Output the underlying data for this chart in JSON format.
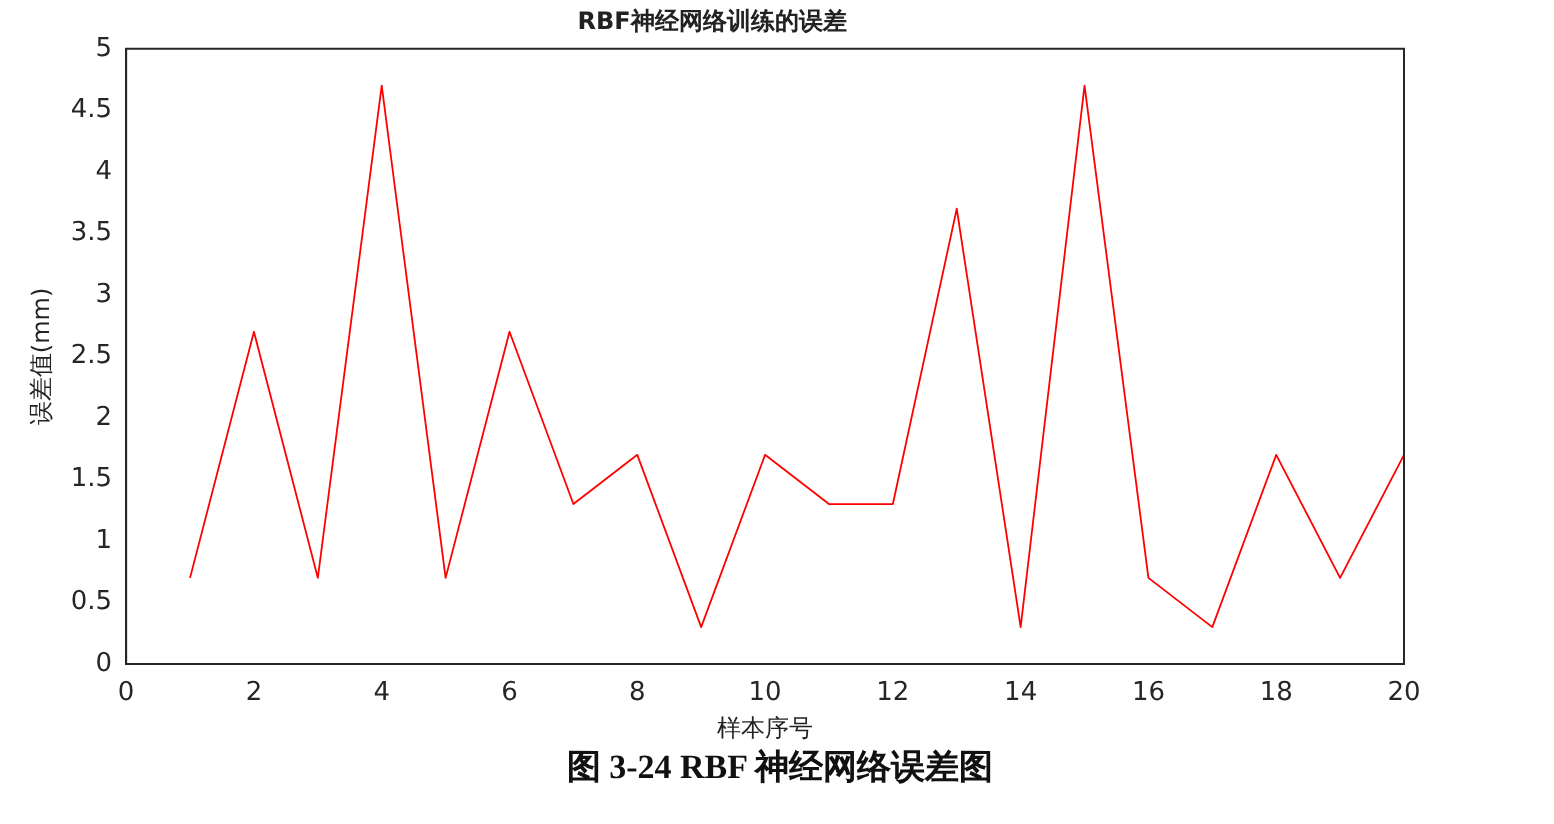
{
  "chart_data": {
    "type": "line",
    "title": "RBF神经网络训练的误差",
    "xlabel": "样本序号",
    "ylabel": "误差值(mm)",
    "annotations": [
      "图 3-24 RBF 神经网络误差图"
    ],
    "x": [
      1,
      2,
      3,
      4,
      5,
      6,
      7,
      8,
      9,
      10,
      11,
      12,
      13,
      14,
      15,
      16,
      17,
      18,
      19,
      20
    ],
    "series": [
      {
        "color": "#ff0000",
        "values": [
          0.7,
          2.7,
          0.7,
          4.7,
          0.7,
          2.7,
          1.3,
          1.7,
          0.3,
          1.7,
          1.3,
          1.3,
          3.7,
          0.3,
          4.7,
          0.7,
          0.3,
          1.7,
          0.7,
          1.7
        ]
      }
    ],
    "xlim": [
      0,
      20
    ],
    "xticks": [
      0,
      2,
      4,
      6,
      8,
      10,
      12,
      14,
      16,
      18,
      20
    ],
    "ylim": [
      0,
      5
    ],
    "yticks": [
      0,
      0.5,
      1,
      1.5,
      2,
      2.5,
      3,
      3.5,
      4,
      4.5,
      5
    ],
    "grid": false,
    "legend": false,
    "marker": "none",
    "line_style": "solid"
  }
}
